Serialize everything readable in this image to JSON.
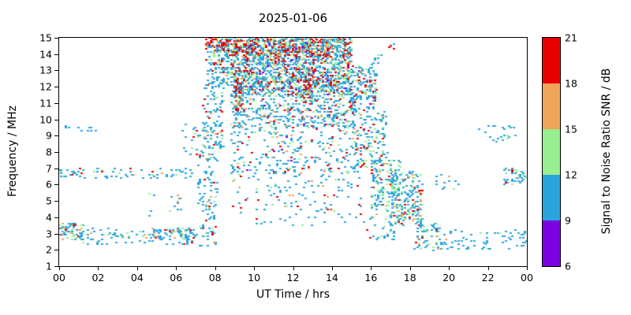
{
  "chart_data": {
    "type": "scatter",
    "title": "2025-01-06",
    "xlabel": "UT Time / hrs",
    "ylabel": "Frequency / MHz",
    "x_range": [
      0,
      24
    ],
    "y_range": [
      1,
      15
    ],
    "x_tick_labels": [
      "00",
      "02",
      "04",
      "06",
      "08",
      "10",
      "12",
      "14",
      "16",
      "18",
      "20",
      "22",
      "00"
    ],
    "y_tick_labels": [
      "1",
      "2",
      "3",
      "4",
      "5",
      "6",
      "7",
      "8",
      "9",
      "10",
      "11",
      "12",
      "13",
      "14",
      "15"
    ],
    "grid": false,
    "marker": {
      "width": 3,
      "height": 2
    },
    "seed": 1234,
    "colorbar": {
      "label": "Signal to Noise Ratio SNR / dB",
      "range": [
        6,
        21
      ],
      "ticks": [
        "6",
        "9",
        "12",
        "15",
        "18",
        "21"
      ],
      "bin_edges": [
        6,
        9,
        12,
        15,
        18,
        21
      ],
      "colors": [
        "#7D00E0",
        "#2AA4DC",
        "#98EE90",
        "#F0A458",
        "#E80000"
      ]
    },
    "clusters_encoding": "each cluster: t=[start,end] UT hrs, f=[low,high] MHz, n=point count, w=probability weights over SNR color bins [6-9,9-12,12-15,15-18,18-21] dB",
    "clusters": [
      {
        "t": [
          0.0,
          1.2
        ],
        "f": [
          2.6,
          3.6
        ],
        "n": 70,
        "w": [
          0,
          0.5,
          0.2,
          0.15,
          0.15
        ]
      },
      {
        "t": [
          0.8,
          6.6
        ],
        "f": [
          2.3,
          3.3
        ],
        "n": 90,
        "w": [
          0,
          0.8,
          0.1,
          0.05,
          0.05
        ]
      },
      {
        "t": [
          0.2,
          2.2
        ],
        "f": [
          9.3,
          9.6
        ],
        "n": 10,
        "w": [
          0,
          1,
          0,
          0,
          0
        ]
      },
      {
        "t": [
          0.0,
          7.6
        ],
        "f": [
          6.4,
          7.0
        ],
        "n": 75,
        "w": [
          0,
          0.75,
          0.1,
          0.05,
          0.1
        ]
      },
      {
        "t": [
          4.8,
          6.9
        ],
        "f": [
          2.7,
          3.3
        ],
        "n": 45,
        "w": [
          0,
          0.6,
          0.15,
          0.1,
          0.15
        ]
      },
      {
        "t": [
          4.5,
          6.5
        ],
        "f": [
          4.0,
          5.5
        ],
        "n": 14,
        "w": [
          0,
          0.8,
          0.1,
          0.05,
          0.05
        ]
      },
      {
        "t": [
          6.2,
          7.4
        ],
        "f": [
          7.8,
          9.8
        ],
        "n": 22,
        "w": [
          0,
          0.8,
          0.1,
          0,
          0.1
        ]
      },
      {
        "t": [
          6.5,
          8.0
        ],
        "f": [
          2.2,
          3.3
        ],
        "n": 28,
        "w": [
          0,
          0.7,
          0.15,
          0.05,
          0.1
        ]
      },
      {
        "t": [
          7.1,
          8.1
        ],
        "f": [
          3.0,
          8.0
        ],
        "n": 85,
        "w": [
          0,
          0.78,
          0.1,
          0.05,
          0.07
        ]
      },
      {
        "t": [
          7.3,
          8.4
        ],
        "f": [
          8.0,
          12.0
        ],
        "n": 95,
        "w": [
          0,
          0.72,
          0.11,
          0.06,
          0.11
        ]
      },
      {
        "t": [
          7.5,
          8.7
        ],
        "f": [
          12.0,
          14.2
        ],
        "n": 110,
        "w": [
          0,
          0.68,
          0.12,
          0.07,
          0.13
        ]
      },
      {
        "t": [
          7.5,
          8.7
        ],
        "f": [
          14.2,
          15.0
        ],
        "n": 95,
        "w": [
          0.05,
          0.3,
          0.1,
          0.1,
          0.45
        ]
      },
      {
        "t": [
          8.6,
          15.0
        ],
        "f": [
          13.8,
          15.0
        ],
        "n": 900,
        "w": [
          0.03,
          0.45,
          0.17,
          0.12,
          0.23
        ]
      },
      {
        "t": [
          8.8,
          15.0
        ],
        "f": [
          11.5,
          13.8
        ],
        "n": 1100,
        "w": [
          0.03,
          0.55,
          0.16,
          0.1,
          0.16
        ]
      },
      {
        "t": [
          8.8,
          15.2
        ],
        "f": [
          9.5,
          11.5
        ],
        "n": 430,
        "w": [
          0.02,
          0.65,
          0.13,
          0.08,
          0.12
        ]
      },
      {
        "t": [
          8.8,
          15.3
        ],
        "f": [
          6.5,
          9.5
        ],
        "n": 270,
        "w": [
          0.02,
          0.7,
          0.12,
          0.06,
          0.1
        ]
      },
      {
        "t": [
          8.8,
          15.5
        ],
        "f": [
          3.5,
          6.5
        ],
        "n": 120,
        "w": [
          0,
          0.7,
          0.15,
          0.07,
          0.08
        ]
      },
      {
        "t": [
          9.0,
          9.4
        ],
        "f": [
          10.5,
          12.6
        ],
        "n": 55,
        "w": [
          0,
          0.2,
          0.1,
          0.1,
          0.6
        ]
      },
      {
        "t": [
          12.5,
          13.0
        ],
        "f": [
          11.0,
          12.8
        ],
        "n": 45,
        "w": [
          0,
          0.25,
          0.15,
          0.1,
          0.5
        ]
      },
      {
        "t": [
          15.0,
          16.3
        ],
        "f": [
          10.5,
          13.3
        ],
        "n": 150,
        "w": [
          0.02,
          0.58,
          0.15,
          0.08,
          0.17
        ]
      },
      {
        "t": [
          15.2,
          16.8
        ],
        "f": [
          7.0,
          10.5
        ],
        "n": 140,
        "w": [
          0,
          0.65,
          0.18,
          0.07,
          0.1
        ]
      },
      {
        "t": [
          16.0,
          17.5
        ],
        "f": [
          4.5,
          7.5
        ],
        "n": 160,
        "w": [
          0,
          0.6,
          0.22,
          0.08,
          0.1
        ]
      },
      {
        "t": [
          17.0,
          18.6
        ],
        "f": [
          3.5,
          6.8
        ],
        "n": 200,
        "w": [
          0,
          0.55,
          0.25,
          0.1,
          0.1
        ]
      },
      {
        "t": [
          18.2,
          19.6
        ],
        "f": [
          2.0,
          3.6
        ],
        "n": 60,
        "w": [
          0,
          0.7,
          0.15,
          0.07,
          0.08
        ]
      },
      {
        "t": [
          15.5,
          17.2
        ],
        "f": [
          2.5,
          4.5
        ],
        "n": 35,
        "w": [
          0,
          0.7,
          0.15,
          0.07,
          0.08
        ]
      },
      {
        "t": [
          19.5,
          24.0
        ],
        "f": [
          2.0,
          3.2
        ],
        "n": 70,
        "w": [
          0,
          0.85,
          0.08,
          0.04,
          0.03
        ]
      },
      {
        "t": [
          19.0,
          20.6
        ],
        "f": [
          5.5,
          6.6
        ],
        "n": 12,
        "w": [
          0,
          0.8,
          0.1,
          0.05,
          0.05
        ]
      },
      {
        "t": [
          21.3,
          23.4
        ],
        "f": [
          8.4,
          9.6
        ],
        "n": 22,
        "w": [
          0,
          0.95,
          0.05,
          0,
          0
        ]
      },
      {
        "t": [
          22.8,
          24.0
        ],
        "f": [
          6.0,
          7.0
        ],
        "n": 40,
        "w": [
          0,
          0.75,
          0.15,
          0.05,
          0.05
        ]
      },
      {
        "t": [
          16.9,
          17.2
        ],
        "f": [
          14.3,
          14.7
        ],
        "n": 4,
        "w": [
          0,
          0.3,
          0,
          0,
          0.7
        ]
      },
      {
        "t": [
          16.0,
          16.6
        ],
        "f": [
          13.4,
          14.0
        ],
        "n": 8,
        "w": [
          0,
          0.9,
          0.1,
          0,
          0
        ]
      }
    ]
  }
}
